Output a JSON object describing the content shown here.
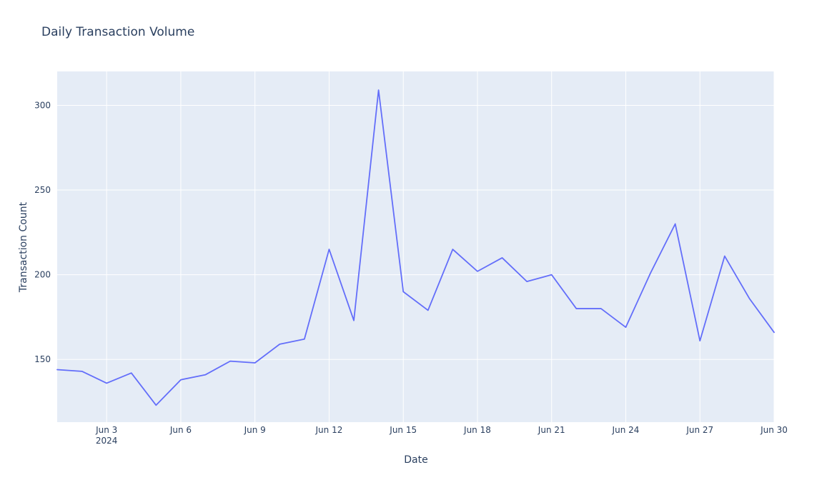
{
  "chart_data": {
    "type": "line",
    "title": "Daily Transaction Volume",
    "xlabel": "Date",
    "ylabel": "Transaction Count",
    "x": [
      "2024-06-01",
      "2024-06-02",
      "2024-06-03",
      "2024-06-04",
      "2024-06-05",
      "2024-06-06",
      "2024-06-07",
      "2024-06-08",
      "2024-06-09",
      "2024-06-10",
      "2024-06-11",
      "2024-06-12",
      "2024-06-13",
      "2024-06-14",
      "2024-06-15",
      "2024-06-16",
      "2024-06-17",
      "2024-06-18",
      "2024-06-19",
      "2024-06-20",
      "2024-06-21",
      "2024-06-22",
      "2024-06-23",
      "2024-06-24",
      "2024-06-25",
      "2024-06-26",
      "2024-06-27",
      "2024-06-28",
      "2024-06-29",
      "2024-06-30"
    ],
    "series": [
      {
        "color": "#636efa",
        "values": [
          144,
          143,
          136,
          142,
          123,
          138,
          141,
          149,
          148,
          159,
          162,
          215,
          173,
          309,
          190,
          179,
          215,
          202,
          210,
          196,
          200,
          180,
          180,
          169,
          201,
          230,
          161,
          211,
          186,
          166
        ]
      }
    ],
    "xlim": [
      "2024-06-01",
      "2024-06-30"
    ],
    "ylim": [
      113,
      320
    ],
    "x_ticks": [
      {
        "value": "2024-06-03",
        "label": "Jun 3",
        "sublabel": "2024"
      },
      {
        "value": "2024-06-06",
        "label": "Jun 6"
      },
      {
        "value": "2024-06-09",
        "label": "Jun 9"
      },
      {
        "value": "2024-06-12",
        "label": "Jun 12"
      },
      {
        "value": "2024-06-15",
        "label": "Jun 15"
      },
      {
        "value": "2024-06-18",
        "label": "Jun 18"
      },
      {
        "value": "2024-06-21",
        "label": "Jun 21"
      },
      {
        "value": "2024-06-24",
        "label": "Jun 24"
      },
      {
        "value": "2024-06-27",
        "label": "Jun 27"
      },
      {
        "value": "2024-06-30",
        "label": "Jun 30"
      }
    ],
    "y_ticks": [
      150,
      200,
      250,
      300
    ],
    "grid": true,
    "plot_background": "#e5ecf6"
  }
}
